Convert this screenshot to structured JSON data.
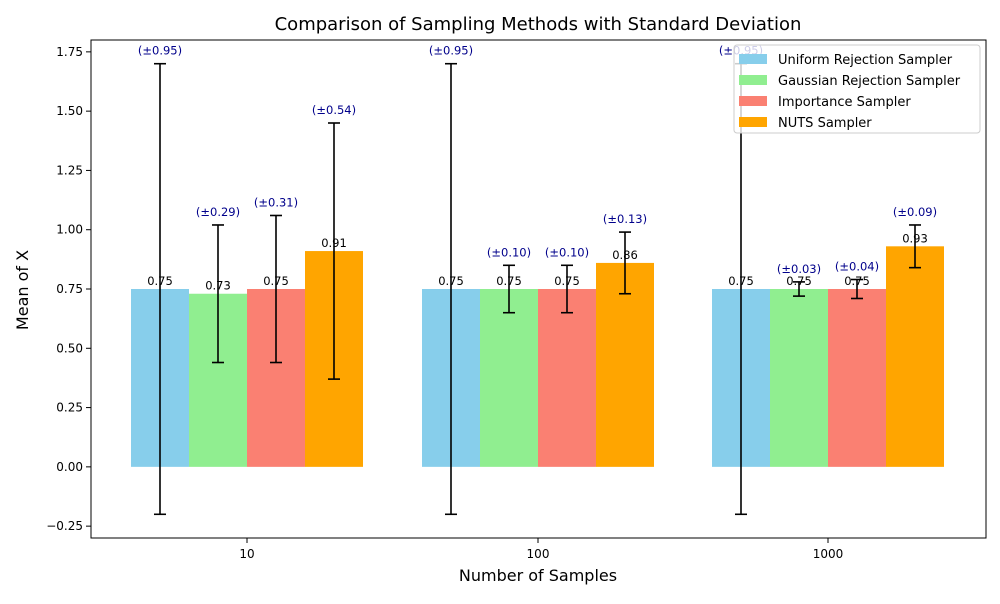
{
  "chart_data": {
    "type": "bar",
    "title": "Comparison of Sampling Methods with Standard Deviation",
    "xlabel": "Number of Samples",
    "ylabel": "Mean of X",
    "categories": [
      "10",
      "100",
      "1000"
    ],
    "ylim": [
      -0.3,
      1.8
    ],
    "yticks": [
      -0.25,
      0.0,
      0.25,
      0.5,
      0.75,
      1.0,
      1.25,
      1.5,
      1.75
    ],
    "ytick_labels": [
      "−0.25",
      "0.00",
      "0.25",
      "0.50",
      "0.75",
      "1.00",
      "1.25",
      "1.50",
      "1.75"
    ],
    "grid": false,
    "legend_position": "top-right",
    "series": [
      {
        "name": "Uniform Rejection Sampler",
        "color": "#87CEEB",
        "values": [
          0.75,
          0.75,
          0.75
        ],
        "errors": [
          0.95,
          0.95,
          0.95
        ],
        "value_labels": [
          "0.75",
          "0.75",
          "0.75"
        ],
        "error_labels": [
          "(±0.95)",
          "(±0.95)",
          "(±0.95)"
        ]
      },
      {
        "name": "Gaussian Rejection Sampler",
        "color": "#90EE90",
        "values": [
          0.73,
          0.75,
          0.75
        ],
        "errors": [
          0.29,
          0.1,
          0.03
        ],
        "value_labels": [
          "0.73",
          "0.75",
          "0.75"
        ],
        "error_labels": [
          "(±0.29)",
          "(±0.10)",
          "(±0.03)"
        ]
      },
      {
        "name": "Importance Sampler",
        "color": "#FA8072",
        "values": [
          0.75,
          0.75,
          0.75
        ],
        "errors": [
          0.31,
          0.1,
          0.04
        ],
        "value_labels": [
          "0.75",
          "0.75",
          "0.75"
        ],
        "error_labels": [
          "(±0.31)",
          "(±0.10)",
          "(±0.04)"
        ]
      },
      {
        "name": "NUTS Sampler",
        "color": "#FFA500",
        "values": [
          0.91,
          0.86,
          0.93
        ],
        "errors": [
          0.54,
          0.13,
          0.09
        ],
        "value_labels": [
          "0.91",
          "0.86",
          "0.93"
        ],
        "error_labels": [
          "(±0.54)",
          "(±0.13)",
          "(±0.09)"
        ]
      }
    ],
    "error_label_color": "#00008B"
  }
}
